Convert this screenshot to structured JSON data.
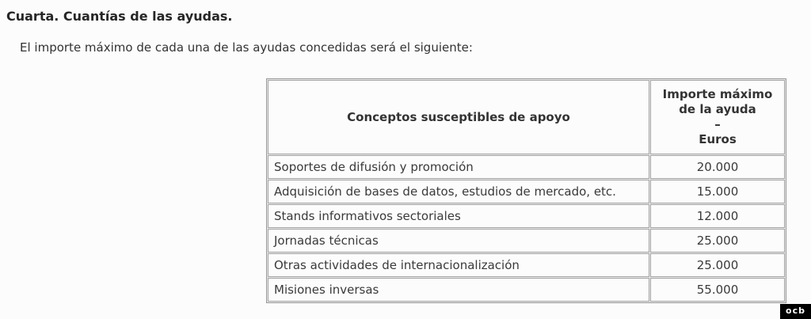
{
  "page": {
    "title": "Cuarta. Cuantías de las ayudas.",
    "intro": "El importe máximo de cada una de las ayudas concedidas será el siguiente:"
  },
  "table": {
    "header": {
      "concept": "Conceptos susceptibles de apoyo",
      "amount_lines": [
        "Importe máximo",
        "de la ayuda",
        "–",
        "Euros"
      ]
    },
    "rows": [
      {
        "concept": "Soportes de difusión y promoción",
        "amount": "20.000"
      },
      {
        "concept": "Adquisición de bases de datos, estudios de mercado, etc.",
        "amount": "15.000"
      },
      {
        "concept": "Stands informativos sectoriales",
        "amount": "12.000"
      },
      {
        "concept": "Jornadas técnicas",
        "amount": "25.000"
      },
      {
        "concept": "Otras actividades de internacionalización",
        "amount": "25.000"
      },
      {
        "concept": "Misiones inversas",
        "amount": "55.000"
      }
    ]
  },
  "watermark": {
    "label": "ocb"
  },
  "colors": {
    "page_background": "#fcfcfc",
    "table_border": "#989898",
    "cell_border": "#a5a5a5",
    "text": "#333333",
    "badge_background": "#000000",
    "badge_text": "#ffffff"
  }
}
